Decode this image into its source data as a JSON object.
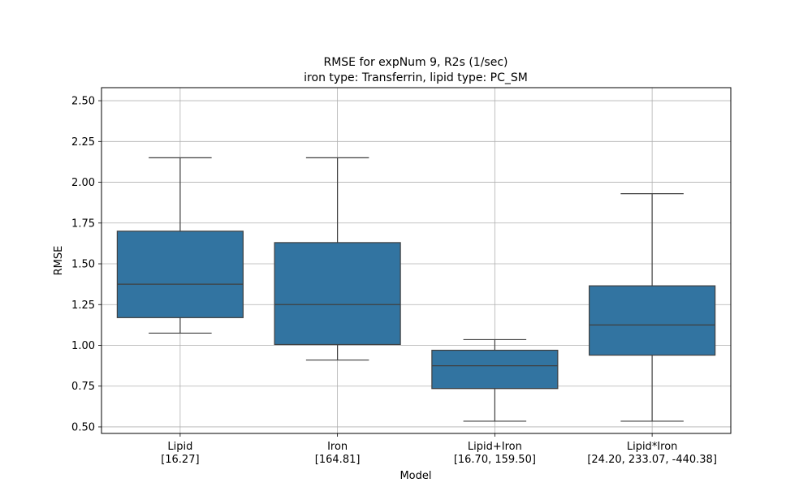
{
  "chart_data": {
    "type": "boxplot",
    "title_lines": [
      "RMSE for expNum 9, R2s (1/sec)",
      "iron type: Transferrin, lipid type: PC_SM"
    ],
    "xlabel": "Model",
    "ylabel": "RMSE",
    "ylim": [
      0.46,
      2.58
    ],
    "yticks": [
      0.5,
      0.75,
      1.0,
      1.25,
      1.5,
      1.75,
      2.0,
      2.25,
      2.5
    ],
    "ytick_labels": [
      "0.50",
      "0.75",
      "1.00",
      "1.25",
      "1.50",
      "1.75",
      "2.00",
      "2.25",
      "2.50"
    ],
    "grid": true,
    "box_color": "#3274a1",
    "edge_color": "#3f3f3f",
    "categories": [
      {
        "name": "Lipid",
        "sublabel": "[16.27]"
      },
      {
        "name": "Iron",
        "sublabel": "[164.81]"
      },
      {
        "name": "Lipid+Iron",
        "sublabel": "[16.70, 159.50]"
      },
      {
        "name": "Lipid*Iron",
        "sublabel": "[24.20, 233.07, -440.38]"
      }
    ],
    "boxes": [
      {
        "whisker_low": 1.075,
        "q1": 1.17,
        "median": 1.375,
        "q3": 1.7,
        "whisker_high": 2.15
      },
      {
        "whisker_low": 0.91,
        "q1": 1.005,
        "median": 1.25,
        "q3": 1.63,
        "whisker_high": 2.15
      },
      {
        "whisker_low": 0.535,
        "q1": 0.735,
        "median": 0.875,
        "q3": 0.97,
        "whisker_high": 1.035
      },
      {
        "whisker_low": 0.535,
        "q1": 0.94,
        "median": 1.125,
        "q3": 1.365,
        "whisker_high": 1.93
      }
    ]
  }
}
